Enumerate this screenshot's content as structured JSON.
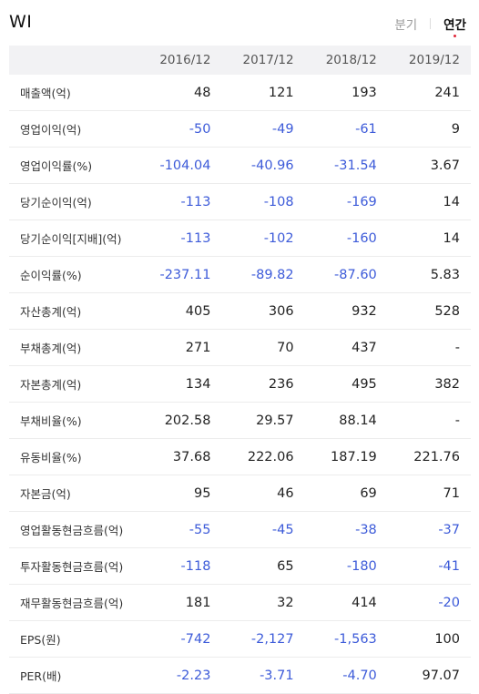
{
  "header": {
    "company": "WI",
    "tabs": [
      {
        "label": "분기",
        "active": false
      },
      {
        "label": "연간",
        "active": true
      }
    ]
  },
  "colors": {
    "negative": "#3d5bd9",
    "active_dot": "#e0283a",
    "header_bg": "#f2f2f4"
  },
  "table": {
    "columns": [
      "",
      "2016/12",
      "2017/12",
      "2018/12",
      "2019/12"
    ],
    "rows": [
      {
        "label": "매출액(억)",
        "values": [
          "48",
          "121",
          "193",
          "241"
        ]
      },
      {
        "label": "영업이익(억)",
        "values": [
          "-50",
          "-49",
          "-61",
          "9"
        ]
      },
      {
        "label": "영업이익률(%)",
        "values": [
          "-104.04",
          "-40.96",
          "-31.54",
          "3.67"
        ]
      },
      {
        "label": "당기순이익(억)",
        "values": [
          "-113",
          "-108",
          "-169",
          "14"
        ]
      },
      {
        "label": "당기순이익[지배](억)",
        "values": [
          "-113",
          "-102",
          "-160",
          "14"
        ]
      },
      {
        "label": "순이익률(%)",
        "values": [
          "-237.11",
          "-89.82",
          "-87.60",
          "5.83"
        ]
      },
      {
        "label": "자산총계(억)",
        "values": [
          "405",
          "306",
          "932",
          "528"
        ]
      },
      {
        "label": "부채총계(억)",
        "values": [
          "271",
          "70",
          "437",
          "-"
        ]
      },
      {
        "label": "자본총계(억)",
        "values": [
          "134",
          "236",
          "495",
          "382"
        ]
      },
      {
        "label": "부채비율(%)",
        "values": [
          "202.58",
          "29.57",
          "88.14",
          "-"
        ]
      },
      {
        "label": "유동비율(%)",
        "values": [
          "37.68",
          "222.06",
          "187.19",
          "221.76"
        ]
      },
      {
        "label": "자본금(억)",
        "values": [
          "95",
          "46",
          "69",
          "71"
        ]
      },
      {
        "label": "영업활동현금흐름(억)",
        "values": [
          "-55",
          "-45",
          "-38",
          "-37"
        ]
      },
      {
        "label": "투자활동현금흐름(억)",
        "values": [
          "-118",
          "65",
          "-180",
          "-41"
        ]
      },
      {
        "label": "재무활동현금흐름(억)",
        "values": [
          "181",
          "32",
          "414",
          "-20"
        ]
      },
      {
        "label": "EPS(원)",
        "values": [
          "-742",
          "-2,127",
          "-1,563",
          "100"
        ]
      },
      {
        "label": "PER(배)",
        "values": [
          "-2.23",
          "-3.71",
          "-4.70",
          "97.07"
        ]
      }
    ]
  }
}
